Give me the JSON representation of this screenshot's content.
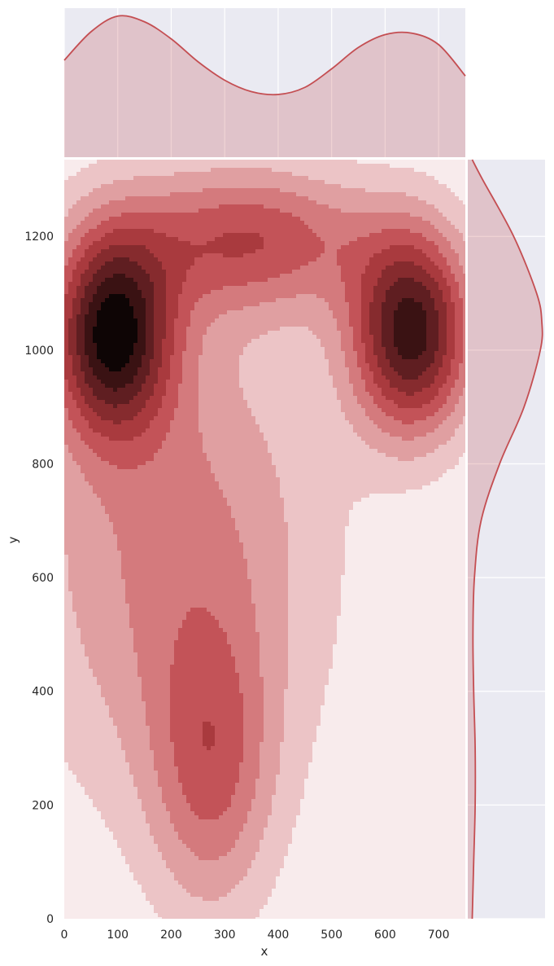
{
  "chart_data": {
    "type": "kde_joint",
    "xlabel": "x",
    "ylabel": "y",
    "xlim": [
      0,
      750
    ],
    "ylim": [
      0,
      1335
    ],
    "x_ticks": [
      "0",
      "100",
      "200",
      "300",
      "400",
      "500",
      "600",
      "700"
    ],
    "y_ticks": [
      "0",
      "200",
      "400",
      "600",
      "800",
      "1000",
      "1200"
    ],
    "grid": true,
    "colors": {
      "accent": "#c44e52",
      "background": "#eaeaf2",
      "levels": [
        "#f8ebec",
        "#ecc4c6",
        "#e09fa1",
        "#d47a7d",
        "#c35358",
        "#a93a3e",
        "#862b2e",
        "#5f1e21",
        "#3a1213",
        "#0e0505"
      ]
    },
    "kde_components": [
      {
        "x": 90,
        "y": 1030,
        "sx": 78,
        "sy": 125,
        "w": 0.3
      },
      {
        "x": 650,
        "y": 1030,
        "sx": 80,
        "sy": 125,
        "w": 0.3
      },
      {
        "x": 350,
        "y": 1195,
        "sx": 170,
        "sy": 90,
        "w": 0.16
      },
      {
        "x": 275,
        "y": 260,
        "sx": 80,
        "sy": 180,
        "w": 0.12
      },
      {
        "x": 210,
        "y": 650,
        "sx": 200,
        "sy": 320,
        "w": 0.12
      }
    ],
    "marginal_x_density": [
      {
        "x": 0,
        "d": 0.68
      },
      {
        "x": 50,
        "d": 0.88
      },
      {
        "x": 100,
        "d": 0.99
      },
      {
        "x": 150,
        "d": 0.95
      },
      {
        "x": 200,
        "d": 0.83
      },
      {
        "x": 250,
        "d": 0.67
      },
      {
        "x": 300,
        "d": 0.54
      },
      {
        "x": 350,
        "d": 0.46
      },
      {
        "x": 400,
        "d": 0.44
      },
      {
        "x": 450,
        "d": 0.49
      },
      {
        "x": 500,
        "d": 0.62
      },
      {
        "x": 550,
        "d": 0.77
      },
      {
        "x": 600,
        "d": 0.86
      },
      {
        "x": 650,
        "d": 0.87
      },
      {
        "x": 700,
        "d": 0.79
      },
      {
        "x": 750,
        "d": 0.57
      }
    ],
    "marginal_y_density": [
      {
        "y": 0,
        "d": 0.06
      },
      {
        "y": 100,
        "d": 0.08
      },
      {
        "y": 200,
        "d": 0.1
      },
      {
        "y": 300,
        "d": 0.1
      },
      {
        "y": 400,
        "d": 0.08
      },
      {
        "y": 500,
        "d": 0.07
      },
      {
        "y": 600,
        "d": 0.09
      },
      {
        "y": 700,
        "d": 0.18
      },
      {
        "y": 800,
        "d": 0.43
      },
      {
        "y": 900,
        "d": 0.76
      },
      {
        "y": 1000,
        "d": 0.98
      },
      {
        "y": 1050,
        "d": 1.0
      },
      {
        "y": 1100,
        "d": 0.93
      },
      {
        "y": 1200,
        "d": 0.62
      },
      {
        "y": 1300,
        "d": 0.2
      },
      {
        "y": 1335,
        "d": 0.06
      }
    ]
  }
}
